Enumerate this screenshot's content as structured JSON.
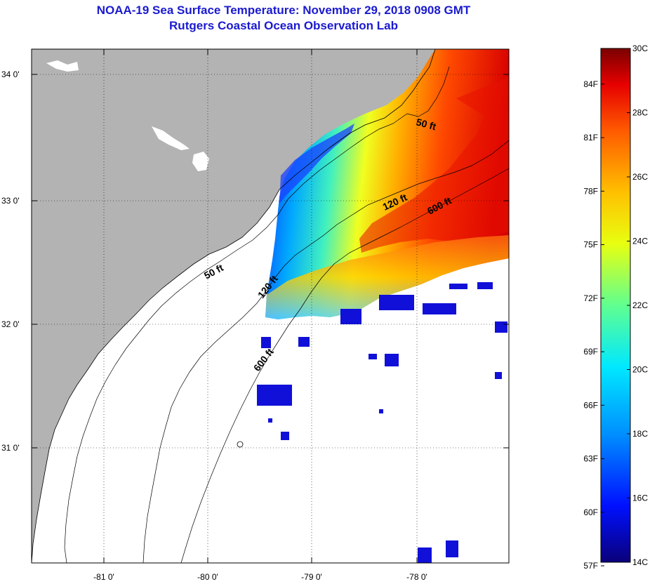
{
  "title": {
    "line1": "NOAA-19 Sea Surface Temperature:  November 29, 2018 0908 GMT",
    "line2": "Rutgers Coastal Ocean Observation Lab"
  },
  "map": {
    "lat_ticks": [
      {
        "value": 34,
        "label": "34 0'"
      },
      {
        "value": 33,
        "label": "33 0'"
      },
      {
        "value": 32,
        "label": "32 0'"
      },
      {
        "value": 31,
        "label": "31 0'"
      }
    ],
    "lon_ticks": [
      {
        "value": -81,
        "label": "-81 0'"
      },
      {
        "value": -80,
        "label": "-80 0'"
      },
      {
        "value": -79,
        "label": "-79 0'"
      },
      {
        "value": -78,
        "label": "-78 0'"
      }
    ],
    "contour_labels": [
      "50 ft",
      "120 ft",
      "600 ft",
      "50 ft",
      "120 ft",
      "600 ft"
    ],
    "colors": {
      "land": "#b3b3b3",
      "ocean_nodata": "#ffffff",
      "grid": "#000000"
    }
  },
  "colorbar": {
    "range_c": [
      14,
      30
    ],
    "celsius_labels": [
      "30C",
      "28C",
      "26C",
      "24C",
      "22C",
      "20C",
      "18C",
      "16C",
      "14C"
    ],
    "fahrenheit_labels": [
      "84F",
      "81F",
      "78F",
      "75F",
      "72F",
      "69F",
      "66F",
      "63F",
      "60F",
      "57F"
    ],
    "stops": [
      "#0a007a",
      "#0010ff",
      "#0090ff",
      "#00e8ff",
      "#60ff90",
      "#e8ff10",
      "#ffc000",
      "#ff5a00",
      "#e60000",
      "#7a0000"
    ]
  }
}
